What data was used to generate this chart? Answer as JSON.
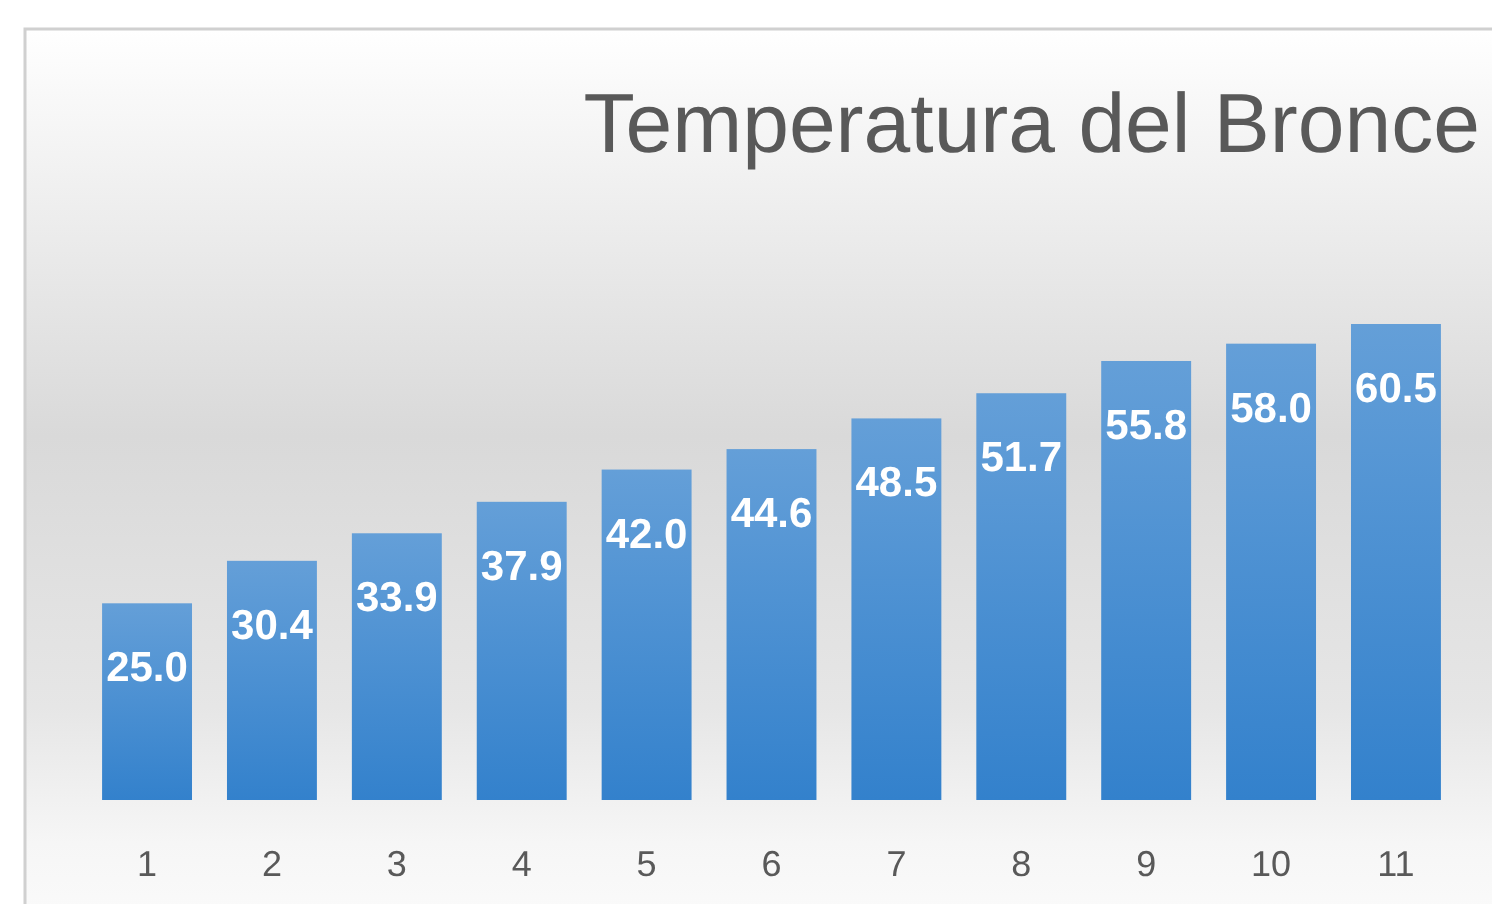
{
  "chart_data": {
    "type": "bar",
    "title": "Temperatura del Bronce",
    "categories": [
      "1",
      "2",
      "3",
      "4",
      "5",
      "6",
      "7",
      "8",
      "9",
      "10",
      "11"
    ],
    "values": [
      25.0,
      30.4,
      33.9,
      37.9,
      42.0,
      44.6,
      48.5,
      51.7,
      55.8,
      58.0,
      60.5
    ],
    "value_labels": [
      "25.0",
      "30.4",
      "33.9",
      "37.9",
      "42.0",
      "44.6",
      "48.5",
      "51.7",
      "55.8",
      "58.0",
      "60.5"
    ],
    "color": "#4a8fd2",
    "tick_labels": "x"
  }
}
